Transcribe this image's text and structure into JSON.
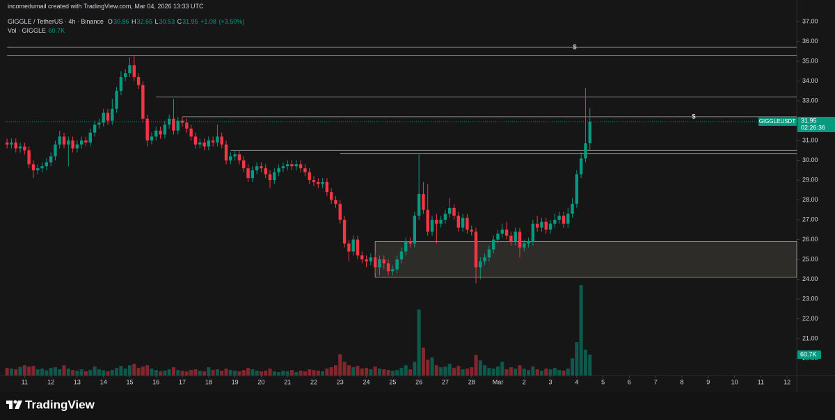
{
  "chart_data": {
    "type": "candlestick",
    "watermark": "incomedumail created with TradingView.com, Mar 04, 2026 13:33 UTC",
    "title": "GIGGLE / TetherUS · 4h · Binance",
    "ohlc_letters": [
      "O",
      "H",
      "L",
      "C"
    ],
    "change": "+1.08",
    "change_pct": "(+3.50%)",
    "volume_title": "Vol · GIGGLE",
    "volume_last_label": "60.7K",
    "symbol_badge": "GIGGLEUSDT",
    "countdown": "02:26:36",
    "alert_marker": "$",
    "brand": "TradingView",
    "up_color": "#089981",
    "down_color": "#f23645",
    "ylim": [
      19.14,
      37.32
    ],
    "yticks": [
      {
        "value": 37,
        "label": "37.00"
      },
      {
        "value": 36,
        "label": "36.00"
      },
      {
        "value": 35,
        "label": "35.00"
      },
      {
        "value": 34,
        "label": "34.00"
      },
      {
        "value": 33,
        "label": "33.00"
      },
      {
        "value": 32,
        "label": "32.00"
      },
      {
        "value": 31,
        "label": "31.00"
      },
      {
        "value": 30,
        "label": "30.00"
      },
      {
        "value": 29,
        "label": "29.00"
      },
      {
        "value": 28,
        "label": "28.00"
      },
      {
        "value": 27,
        "label": "27.00"
      },
      {
        "value": 26,
        "label": "26.00"
      },
      {
        "value": 25,
        "label": "25.00"
      },
      {
        "value": 24,
        "label": "24.00"
      },
      {
        "value": 23,
        "label": "23.00"
      },
      {
        "value": 22,
        "label": "22.00"
      },
      {
        "value": 21,
        "label": "21.00"
      },
      {
        "value": 20,
        "label": "20.00"
      }
    ],
    "xlim": [
      -0.5,
      180.2
    ],
    "xticks": [
      {
        "value": 4,
        "label": "11"
      },
      {
        "value": 10,
        "label": "12"
      },
      {
        "value": 16,
        "label": "13"
      },
      {
        "value": 22,
        "label": "14"
      },
      {
        "value": 28,
        "label": "15"
      },
      {
        "value": 34,
        "label": "16"
      },
      {
        "value": 40,
        "label": "17"
      },
      {
        "value": 46,
        "label": "18"
      },
      {
        "value": 52,
        "label": "19"
      },
      {
        "value": 58,
        "label": "20"
      },
      {
        "value": 64,
        "label": "21"
      },
      {
        "value": 70,
        "label": "22"
      },
      {
        "value": 76,
        "label": "23"
      },
      {
        "value": 82,
        "label": "24"
      },
      {
        "value": 88,
        "label": "25"
      },
      {
        "value": 94,
        "label": "26"
      },
      {
        "value": 100,
        "label": "27"
      },
      {
        "value": 106,
        "label": "28"
      },
      {
        "value": 112,
        "label": "Mar"
      },
      {
        "value": 118,
        "label": "2"
      },
      {
        "value": 124,
        "label": "3"
      },
      {
        "value": 130,
        "label": "4"
      },
      {
        "value": 136,
        "label": "5"
      },
      {
        "value": 142,
        "label": "6"
      },
      {
        "value": 148,
        "label": "7"
      },
      {
        "value": 154,
        "label": "8"
      },
      {
        "value": 160,
        "label": "9"
      },
      {
        "value": 166,
        "label": "10"
      },
      {
        "value": 172,
        "label": "11"
      },
      {
        "value": 178,
        "label": "12"
      }
    ],
    "open": [
      30.9,
      30.8,
      30.9,
      30.6,
      30.7,
      30.5,
      29.8,
      29.5,
      29.6,
      29.7,
      29.9,
      30.2,
      30.8,
      31.2,
      30.8,
      31.0,
      30.6,
      30.8,
      31.0,
      30.9,
      31.4,
      31.8,
      31.9,
      32.4,
      32.0,
      32.6,
      33.5,
      34.2,
      34.4,
      34.8,
      34.2,
      33.8,
      32.1,
      31.0,
      31.2,
      31.5,
      31.3,
      31.8,
      32.1,
      31.5,
      32.0,
      31.9,
      31.6,
      31.2,
      30.8,
      30.9,
      30.7,
      31.0,
      30.9,
      31.2,
      30.8,
      30.0,
      30.2,
      30.3,
      30.0,
      29.6,
      29.1,
      29.5,
      29.7,
      29.6,
      29.3,
      29.0,
      29.4,
      29.6,
      29.7,
      29.8,
      29.7,
      29.8,
      29.6,
      29.4,
      29.0,
      28.9,
      28.8,
      28.9,
      28.4,
      28.0,
      27.8,
      27.0,
      25.8,
      25.4,
      26.0,
      25.2,
      25.0,
      24.9,
      25.1,
      24.6,
      25.0,
      24.8,
      24.4,
      24.5,
      25.0,
      25.4,
      25.9,
      25.8,
      27.2,
      28.3,
      27.5,
      26.4,
      27.0,
      26.8,
      27.0,
      27.3,
      27.6,
      27.2,
      26.6,
      27.1,
      26.5,
      26.4,
      24.6,
      24.9,
      25.1,
      25.5,
      26.0,
      26.3,
      26.5,
      26.2,
      25.9,
      26.4,
      25.6,
      25.8,
      25.9,
      26.8,
      26.6,
      26.9,
      26.5,
      26.8,
      27.0,
      27.2,
      26.8,
      27.3,
      27.8,
      29.3,
      30.1,
      30.86
    ],
    "high": [
      31.1,
      31.1,
      31.1,
      30.9,
      30.9,
      30.7,
      30.0,
      29.8,
      29.9,
      30.1,
      30.4,
      31.0,
      31.5,
      31.4,
      31.2,
      31.2,
      31.0,
      31.2,
      31.2,
      31.6,
      32.0,
      32.1,
      32.6,
      32.6,
      33.1,
      33.7,
      34.5,
      34.6,
      35.2,
      35.3,
      34.4,
      34.0,
      32.3,
      31.4,
      31.7,
      31.7,
      32.0,
      32.3,
      33.1,
      32.2,
      32.2,
      32.1,
      31.8,
      31.4,
      31.1,
      31.1,
      31.2,
      31.2,
      31.8,
      31.4,
      31.0,
      30.4,
      30.5,
      30.5,
      30.2,
      29.8,
      29.7,
      29.9,
      29.9,
      29.8,
      29.5,
      29.6,
      29.8,
      29.9,
      30.0,
      30.0,
      30.0,
      30.0,
      29.8,
      29.6,
      29.2,
      29.1,
      29.1,
      29.1,
      28.6,
      28.2,
      28.0,
      27.2,
      26.0,
      26.2,
      26.2,
      25.4,
      25.2,
      25.3,
      25.3,
      25.2,
      25.2,
      25.0,
      24.7,
      25.2,
      25.6,
      26.1,
      26.1,
      27.4,
      30.3,
      28.9,
      28.8,
      27.2,
      27.3,
      27.2,
      27.5,
      28.1,
      27.8,
      27.4,
      27.3,
      27.3,
      26.7,
      26.6,
      25.1,
      25.3,
      25.7,
      26.2,
      26.5,
      26.8,
      26.9,
      26.4,
      26.6,
      26.6,
      26.0,
      26.1,
      27.0,
      27.2,
      27.1,
      27.1,
      27.0,
      27.3,
      27.4,
      27.4,
      27.6,
      28.1,
      29.5,
      30.4,
      33.65,
      32.65
    ],
    "low": [
      30.6,
      30.6,
      30.4,
      30.4,
      30.3,
      29.6,
      29.1,
      29.3,
      29.4,
      29.5,
      29.7,
      30.0,
      30.6,
      30.6,
      29.7,
      30.4,
      30.4,
      30.6,
      30.7,
      30.7,
      31.2,
      31.6,
      31.7,
      31.8,
      31.8,
      32.4,
      33.3,
      34.0,
      34.2,
      34.0,
      33.6,
      31.9,
      30.7,
      30.8,
      31.0,
      31.1,
      31.1,
      31.6,
      31.3,
      31.3,
      31.7,
      31.4,
      31.0,
      30.6,
      30.6,
      30.5,
      30.5,
      30.7,
      30.7,
      30.6,
      29.8,
      29.8,
      30.0,
      29.8,
      29.4,
      28.9,
      28.9,
      29.3,
      29.4,
      29.1,
      28.6,
      28.8,
      29.2,
      29.4,
      29.5,
      29.5,
      29.5,
      29.4,
      29.2,
      28.8,
      28.7,
      28.6,
      28.6,
      28.2,
      27.8,
      27.6,
      26.8,
      25.6,
      24.9,
      25.2,
      25.0,
      24.8,
      24.6,
      24.7,
      24.3,
      24.2,
      24.5,
      24.2,
      24.2,
      24.3,
      24.8,
      25.2,
      25.6,
      25.6,
      27.0,
      27.3,
      26.2,
      26.2,
      25.8,
      26.6,
      26.8,
      27.1,
      27.0,
      26.4,
      26.4,
      26.3,
      26.2,
      23.8,
      24.0,
      24.7,
      24.9,
      25.3,
      25.8,
      26.1,
      26.0,
      25.7,
      25.7,
      25.1,
      25.4,
      25.6,
      25.7,
      26.4,
      26.4,
      26.3,
      26.3,
      26.6,
      26.8,
      26.6,
      26.6,
      27.1,
      27.6,
      29.1,
      29.9,
      30.53
    ],
    "close": [
      30.8,
      30.9,
      30.6,
      30.7,
      30.5,
      29.8,
      29.5,
      29.6,
      29.7,
      29.9,
      30.2,
      30.8,
      31.2,
      30.8,
      31.0,
      30.6,
      30.8,
      31.0,
      30.9,
      31.4,
      31.8,
      31.9,
      32.4,
      32.0,
      32.6,
      33.5,
      34.2,
      34.4,
      34.8,
      34.2,
      33.8,
      32.1,
      31.0,
      31.2,
      31.5,
      31.3,
      31.8,
      32.1,
      31.5,
      32.0,
      31.9,
      31.6,
      31.2,
      30.8,
      30.9,
      30.7,
      31.0,
      30.9,
      31.2,
      30.8,
      30.0,
      30.2,
      30.3,
      30.0,
      29.6,
      29.1,
      29.5,
      29.7,
      29.6,
      29.3,
      29.0,
      29.4,
      29.6,
      29.7,
      29.8,
      29.7,
      29.8,
      29.6,
      29.4,
      29.0,
      28.9,
      28.8,
      28.9,
      28.4,
      28.0,
      27.8,
      27.0,
      25.8,
      25.4,
      26.0,
      25.2,
      25.0,
      24.9,
      25.1,
      24.6,
      25.0,
      24.8,
      24.4,
      24.5,
      25.0,
      25.4,
      25.9,
      25.8,
      27.2,
      28.3,
      27.5,
      26.4,
      27.0,
      26.8,
      27.0,
      27.3,
      27.6,
      27.2,
      26.6,
      27.1,
      26.5,
      26.4,
      24.6,
      24.9,
      25.1,
      25.5,
      26.0,
      26.3,
      26.5,
      26.2,
      25.9,
      26.4,
      25.6,
      25.8,
      25.9,
      26.8,
      26.6,
      26.9,
      26.5,
      26.8,
      27.0,
      27.2,
      26.8,
      27.3,
      27.8,
      29.3,
      30.1,
      30.86,
      31.95
    ],
    "volume": [
      22,
      20,
      18,
      25,
      30,
      26,
      28,
      18,
      20,
      15,
      22,
      24,
      18,
      30,
      20,
      16,
      14,
      18,
      12,
      16,
      26,
      18,
      15,
      12,
      16,
      22,
      28,
      20,
      30,
      34,
      22,
      26,
      30,
      20,
      16,
      12,
      14,
      18,
      24,
      16,
      14,
      12,
      16,
      18,
      14,
      12,
      24,
      16,
      18,
      14,
      20,
      16,
      14,
      12,
      16,
      22,
      18,
      14,
      12,
      14,
      20,
      12,
      10,
      14,
      12,
      16,
      10,
      14,
      12,
      18,
      16,
      14,
      12,
      20,
      24,
      30,
      62,
      40,
      30,
      24,
      28,
      20,
      22,
      18,
      26,
      20,
      18,
      16,
      14,
      16,
      22,
      30,
      18,
      40,
      192,
      81,
      46,
      52,
      30,
      24,
      26,
      34,
      22,
      28,
      18,
      20,
      24,
      60,
      44,
      30,
      22,
      20,
      26,
      40,
      18,
      24,
      20,
      30,
      20,
      16,
      26,
      18,
      14,
      20,
      18,
      22,
      16,
      14,
      20,
      50,
      97,
      263,
      75,
      60.7
    ],
    "levels": [
      {
        "price": 35.7,
        "from": 0
      },
      {
        "price": 35.3,
        "from": 0
      },
      {
        "price": 33.2,
        "from": 34
      },
      {
        "price": 32.2,
        "from": 40
      },
      {
        "price": 30.5,
        "from": 51
      },
      {
        "price": 30.35,
        "from": 76
      }
    ],
    "zone": {
      "low": 24.1,
      "high": 25.9,
      "from": 84
    }
  }
}
